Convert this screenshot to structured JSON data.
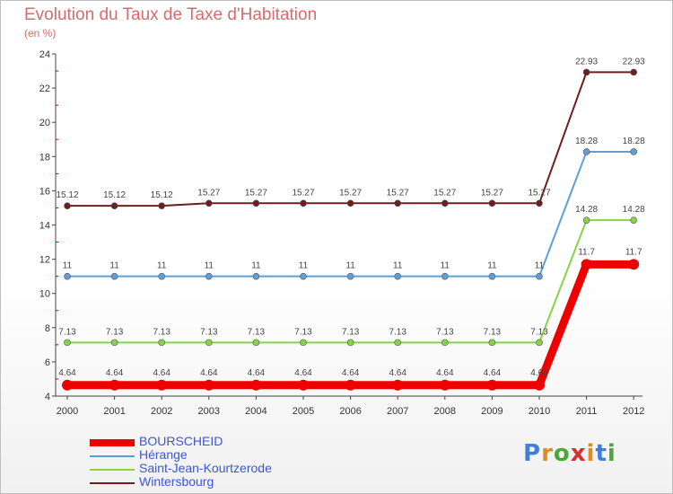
{
  "title": "Evolution du Taux de Taxe d'Habitation",
  "unit": "(en %)",
  "logo": "Proxiti",
  "chart_data": {
    "type": "line",
    "x": [
      "2000",
      "2001",
      "2002",
      "2003",
      "2004",
      "2005",
      "2006",
      "2007",
      "2008",
      "2009",
      "2010",
      "2011",
      "2012"
    ],
    "ylim": [
      4,
      24
    ],
    "yticks": [
      4,
      6,
      8,
      10,
      12,
      14,
      16,
      18,
      20,
      22,
      24
    ],
    "grid": false,
    "legend_position": "bottom-left",
    "series": [
      {
        "name": "BOURSCHEID",
        "color": "#ee0000",
        "values": [
          4.64,
          4.64,
          4.64,
          4.64,
          4.64,
          4.64,
          4.64,
          4.64,
          4.64,
          4.64,
          4.64,
          11.7,
          11.7
        ],
        "labels": [
          "4.64",
          "4.64",
          "4.64",
          "4.64",
          "4.64",
          "4.64",
          "4.64",
          "4.64",
          "4.64",
          "4.64",
          "4.64",
          "11.7",
          "11.7"
        ]
      },
      {
        "name": "Hérange",
        "color": "#5f9fd7",
        "values": [
          11,
          11,
          11,
          11,
          11,
          11,
          11,
          11,
          11,
          11,
          11,
          18.28,
          18.28
        ],
        "labels": [
          "11",
          "11",
          "11",
          "11",
          "11",
          "11",
          "11",
          "11",
          "11",
          "11",
          "11",
          "18.28",
          "18.28"
        ]
      },
      {
        "name": "Saint-Jean-Kourtzerode",
        "color": "#88d444",
        "values": [
          7.13,
          7.13,
          7.13,
          7.13,
          7.13,
          7.13,
          7.13,
          7.13,
          7.13,
          7.13,
          7.13,
          14.28,
          14.28
        ],
        "labels": [
          "7.13",
          "7.13",
          "7.13",
          "7.13",
          "7.13",
          "7.13",
          "7.13",
          "7.13",
          "7.13",
          "7.13",
          "7.13",
          "14.28",
          "14.28"
        ]
      },
      {
        "name": "Wintersbourg",
        "color": "#6e1e1e",
        "values": [
          15.12,
          15.12,
          15.12,
          15.27,
          15.27,
          15.27,
          15.27,
          15.27,
          15.27,
          15.27,
          15.27,
          22.93,
          22.93
        ],
        "labels": [
          "15.12",
          "15.12",
          "15.12",
          "15.27",
          "15.27",
          "15.27",
          "15.27",
          "15.27",
          "15.27",
          "15.27",
          "15.27",
          "22.93",
          "22.93"
        ]
      }
    ]
  }
}
